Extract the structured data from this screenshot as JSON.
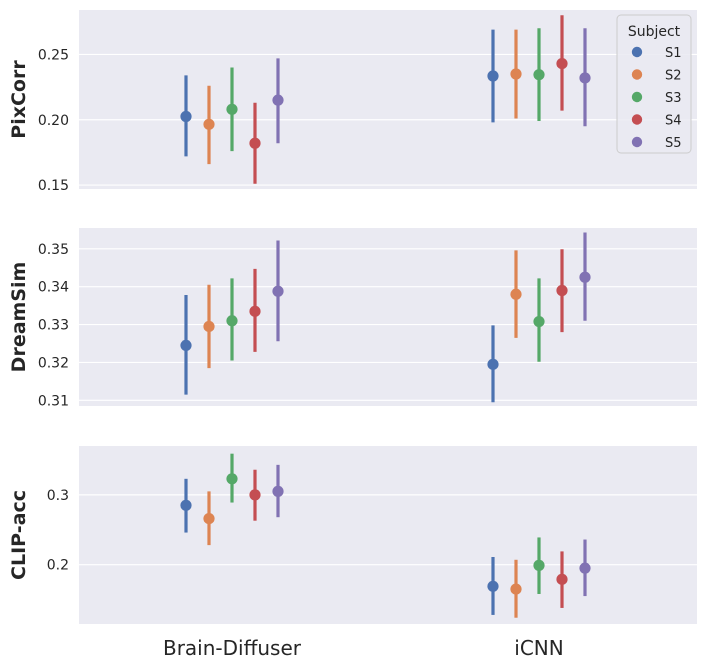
{
  "chart_data": {
    "type": "pointplot",
    "categories": [
      "Brain-Diffuser",
      "iCNN"
    ],
    "legend": {
      "title": "Subject",
      "placement": "top-right",
      "panel": "PixCorr",
      "entries": [
        "S1",
        "S2",
        "S3",
        "S4",
        "S5"
      ]
    },
    "series_colors": {
      "S1": "#4c72b0",
      "S2": "#dd8452",
      "S3": "#55a868",
      "S4": "#c44e52",
      "S5": "#8172b3"
    },
    "panels": [
      {
        "ylabel": "PixCorr",
        "ylim": [
          0.147,
          0.284
        ],
        "yticks": [
          "0.15",
          "0.20",
          "0.25"
        ],
        "ytick_values": [
          0.15,
          0.2,
          0.25
        ],
        "series": [
          {
            "name": "S1",
            "points": [
              {
                "mean": 0.2025,
                "low": 0.172,
                "high": 0.234
              },
              {
                "mean": 0.2335,
                "low": 0.198,
                "high": 0.269
              }
            ]
          },
          {
            "name": "S2",
            "points": [
              {
                "mean": 0.1965,
                "low": 0.166,
                "high": 0.226
              },
              {
                "mean": 0.235,
                "low": 0.201,
                "high": 0.269
              }
            ]
          },
          {
            "name": "S3",
            "points": [
              {
                "mean": 0.208,
                "low": 0.176,
                "high": 0.24
              },
              {
                "mean": 0.2345,
                "low": 0.199,
                "high": 0.27
              }
            ]
          },
          {
            "name": "S4",
            "points": [
              {
                "mean": 0.182,
                "low": 0.151,
                "high": 0.213
              },
              {
                "mean": 0.243,
                "low": 0.207,
                "high": 0.28
              }
            ]
          },
          {
            "name": "S5",
            "points": [
              {
                "mean": 0.215,
                "low": 0.182,
                "high": 0.247
              },
              {
                "mean": 0.232,
                "low": 0.195,
                "high": 0.27
              }
            ]
          }
        ]
      },
      {
        "ylabel": "DreamSim",
        "ylim": [
          0.3085,
          0.3555
        ],
        "yticks": [
          "0.31",
          "0.32",
          "0.33",
          "0.34",
          "0.35"
        ],
        "ytick_values": [
          0.31,
          0.32,
          0.33,
          0.34,
          0.35
        ],
        "series": [
          {
            "name": "S1",
            "points": [
              {
                "mean": 0.3245,
                "low": 0.3115,
                "high": 0.3378
              },
              {
                "mean": 0.3195,
                "low": 0.3095,
                "high": 0.3298
              }
            ]
          },
          {
            "name": "S2",
            "points": [
              {
                "mean": 0.3295,
                "low": 0.3185,
                "high": 0.3405
              },
              {
                "mean": 0.338,
                "low": 0.3265,
                "high": 0.3496
              }
            ]
          },
          {
            "name": "S3",
            "points": [
              {
                "mean": 0.331,
                "low": 0.3205,
                "high": 0.3422
              },
              {
                "mean": 0.3308,
                "low": 0.3202,
                "high": 0.3422
              }
            ]
          },
          {
            "name": "S4",
            "points": [
              {
                "mean": 0.3335,
                "low": 0.3228,
                "high": 0.3447
              },
              {
                "mean": 0.339,
                "low": 0.328,
                "high": 0.3499
              }
            ]
          },
          {
            "name": "S5",
            "points": [
              {
                "mean": 0.3388,
                "low": 0.3256,
                "high": 0.3522
              },
              {
                "mean": 0.3425,
                "low": 0.331,
                "high": 0.3543
              }
            ]
          }
        ]
      },
      {
        "ylabel": "CLIP-acc",
        "ylim": [
          0.115,
          0.37
        ],
        "yticks": [
          "0.2",
          "0.3"
        ],
        "ytick_values": [
          0.2,
          0.3
        ],
        "series": [
          {
            "name": "S1",
            "points": [
              {
                "mean": 0.285,
                "low": 0.246,
                "high": 0.323
              },
              {
                "mean": 0.169,
                "low": 0.128,
                "high": 0.211
              }
            ]
          },
          {
            "name": "S2",
            "points": [
              {
                "mean": 0.266,
                "low": 0.228,
                "high": 0.305
              },
              {
                "mean": 0.165,
                "low": 0.124,
                "high": 0.207
              }
            ]
          },
          {
            "name": "S3",
            "points": [
              {
                "mean": 0.323,
                "low": 0.289,
                "high": 0.359
              },
              {
                "mean": 0.199,
                "low": 0.158,
                "high": 0.239
              }
            ]
          },
          {
            "name": "S4",
            "points": [
              {
                "mean": 0.3,
                "low": 0.263,
                "high": 0.336
              },
              {
                "mean": 0.179,
                "low": 0.138,
                "high": 0.219
              }
            ]
          },
          {
            "name": "S5",
            "points": [
              {
                "mean": 0.305,
                "low": 0.268,
                "high": 0.343
              },
              {
                "mean": 0.195,
                "low": 0.155,
                "high": 0.236
              }
            ]
          }
        ]
      }
    ]
  }
}
